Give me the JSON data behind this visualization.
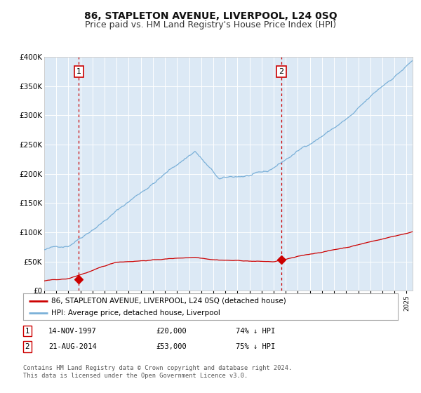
{
  "title": "86, STAPLETON AVENUE, LIVERPOOL, L24 0SQ",
  "subtitle": "Price paid vs. HM Land Registry's House Price Index (HPI)",
  "title_fontsize": 10,
  "subtitle_fontsize": 9,
  "background_color": "#dce9f5",
  "plot_bg_color": "#dce9f5",
  "figure_bg_color": "#ffffff",
  "hpi_color": "#7ab0d8",
  "price_color": "#cc0000",
  "marker_color": "#cc0000",
  "vline_color": "#cc0000",
  "grid_color": "#ffffff",
  "ylim": [
    0,
    400000
  ],
  "yticks": [
    0,
    50000,
    100000,
    150000,
    200000,
    250000,
    300000,
    350000,
    400000
  ],
  "ytick_labels": [
    "£0",
    "£50K",
    "£100K",
    "£150K",
    "£200K",
    "£250K",
    "£300K",
    "£350K",
    "£400K"
  ],
  "sale1_date": 1997.87,
  "sale1_price": 20000,
  "sale1_label": "1",
  "sale2_date": 2014.64,
  "sale2_price": 53000,
  "sale2_label": "2",
  "legend_label_price": "86, STAPLETON AVENUE, LIVERPOOL, L24 0SQ (detached house)",
  "legend_label_hpi": "HPI: Average price, detached house, Liverpool",
  "note1_label": "1",
  "note1_date": "14-NOV-1997",
  "note1_price": "£20,000",
  "note1_pct": "74% ↓ HPI",
  "note2_label": "2",
  "note2_date": "21-AUG-2014",
  "note2_price": "£53,000",
  "note2_pct": "75% ↓ HPI",
  "footnote": "Contains HM Land Registry data © Crown copyright and database right 2024.\nThis data is licensed under the Open Government Licence v3.0.",
  "xmin": 1995.0,
  "xmax": 2025.5
}
